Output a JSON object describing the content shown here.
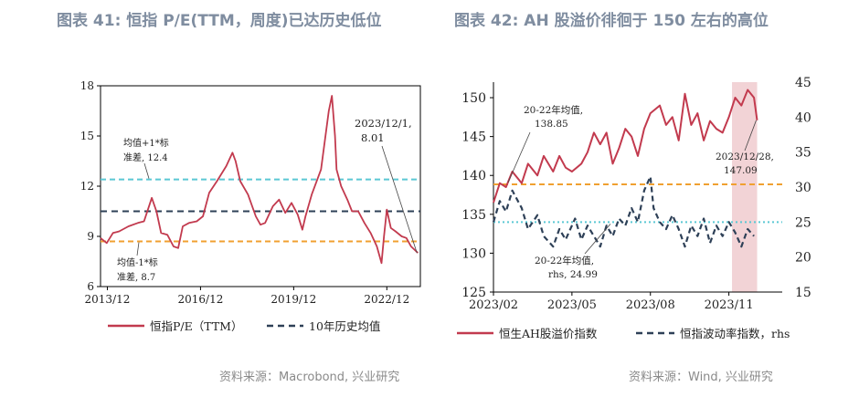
{
  "left_panel": {
    "title": "图表 41: 恒指 P/E(TTM，周度)已达历史低位",
    "source": "资料来源：Macrobond, 兴业研究"
  },
  "right_panel": {
    "title": "图表 42: AH 股溢价徘徊于 150 左右的高位",
    "source": "资料来源：Wind, 兴业研究"
  },
  "chart_data": [
    {
      "type": "line",
      "title": "恒指 P/E(TTM，周度)已达历史低位",
      "xlabel": "",
      "ylabel": "",
      "ylim": [
        6,
        18
      ],
      "yticks": [
        6,
        9,
        12,
        15,
        18
      ],
      "xlim": [
        2013.7,
        2024.0
      ],
      "xticks": [
        {
          "label": "2013/12",
          "x": 2013.92
        },
        {
          "label": "2016/12",
          "x": 2016.92
        },
        {
          "label": "2019/12",
          "x": 2019.92
        },
        {
          "label": "2022/12",
          "x": 2022.92
        }
      ],
      "series": [
        {
          "name": "恒指P/E（TTM）",
          "color": "#c23a4e",
          "x": [
            2013.7,
            2013.9,
            2014.1,
            2014.3,
            2014.6,
            2014.9,
            2015.1,
            2015.35,
            2015.5,
            2015.65,
            2015.85,
            2016.05,
            2016.2,
            2016.35,
            2016.55,
            2016.8,
            2017.0,
            2017.2,
            2017.45,
            2017.75,
            2017.95,
            2018.05,
            2018.2,
            2018.45,
            2018.7,
            2018.85,
            2019.0,
            2019.25,
            2019.45,
            2019.65,
            2019.85,
            2020.05,
            2020.2,
            2020.3,
            2020.5,
            2020.8,
            2021.05,
            2021.15,
            2021.25,
            2021.3,
            2021.45,
            2021.65,
            2021.8,
            2022.0,
            2022.2,
            2022.4,
            2022.6,
            2022.75,
            2022.83,
            2022.92,
            2023.05,
            2023.2,
            2023.4,
            2023.55,
            2023.7,
            2023.92
          ],
          "values": [
            8.9,
            8.6,
            9.2,
            9.3,
            9.6,
            9.8,
            9.9,
            11.3,
            10.5,
            9.2,
            9.1,
            8.4,
            8.3,
            9.6,
            9.8,
            9.9,
            10.2,
            11.6,
            12.3,
            13.2,
            14.0,
            13.5,
            12.3,
            11.5,
            10.2,
            9.7,
            9.8,
            10.8,
            11.2,
            10.4,
            11.0,
            10.3,
            9.4,
            10.2,
            11.5,
            13.0,
            16.5,
            17.4,
            15.0,
            13.0,
            12.0,
            11.2,
            10.5,
            10.5,
            9.8,
            9.2,
            8.4,
            7.4,
            9.0,
            10.6,
            9.5,
            9.3,
            9.0,
            8.9,
            8.4,
            8.01
          ]
        },
        {
          "name": "10年历史均值",
          "color": "#2e4057",
          "constant": 10.5
        }
      ],
      "reference_lines": [
        {
          "name": "均值+1*标准差",
          "value": 12.4,
          "color": "#5bc8d4"
        },
        {
          "name": "均值-1*标准差",
          "value": 8.7,
          "color": "#f0a030"
        }
      ],
      "annotations": [
        {
          "text_line1": "均值+1*标",
          "text_line2": "准差, 12.4",
          "ref": "upper"
        },
        {
          "text_line1": "均值-1*标",
          "text_line2": "准差, 8.7",
          "ref": "lower"
        },
        {
          "text_line1": "2023/12/1,",
          "text_line2": "8.01",
          "ref": "last"
        }
      ],
      "legend": [
        "恒指P/E（TTM）",
        "10年历史均值"
      ],
      "legend_position": "bottom"
    },
    {
      "type": "line",
      "title": "AH 股溢价徘徊于 150 左右的高位",
      "xlabel": "",
      "ylabel": "",
      "y2label": "",
      "ylim": [
        125,
        152
      ],
      "yticks": [
        125,
        130,
        135,
        140,
        145,
        150
      ],
      "y2lim": [
        15,
        45
      ],
      "y2ticks": [
        15,
        20,
        25,
        30,
        35,
        40,
        45
      ],
      "xlim": [
        2023.08,
        2024.0
      ],
      "xticks": [
        {
          "label": "2023/02",
          "x": 2023.08
        },
        {
          "label": "2023/05",
          "x": 2023.33
        },
        {
          "label": "2023/08",
          "x": 2023.58
        },
        {
          "label": "2023/11",
          "x": 2023.83
        }
      ],
      "shaded_region": [
        2023.84,
        2023.92
      ],
      "series": [
        {
          "name": "恒生AH股溢价指数",
          "color": "#c23a4e",
          "axis": "left",
          "x": [
            2023.08,
            2023.1,
            2023.12,
            2023.14,
            2023.17,
            2023.19,
            2023.22,
            2023.24,
            2023.27,
            2023.29,
            2023.31,
            2023.33,
            2023.36,
            2023.38,
            2023.4,
            2023.42,
            2023.44,
            2023.46,
            2023.48,
            2023.5,
            2023.52,
            2023.54,
            2023.56,
            2023.58,
            2023.61,
            2023.63,
            2023.65,
            2023.67,
            2023.69,
            2023.71,
            2023.73,
            2023.75,
            2023.77,
            2023.79,
            2023.81,
            2023.83,
            2023.85,
            2023.87,
            2023.89,
            2023.91,
            2023.92
          ],
          "values": [
            136.5,
            139.0,
            138.5,
            140.5,
            139.0,
            141.5,
            140.0,
            142.5,
            140.5,
            142.5,
            141.0,
            140.5,
            141.5,
            143.0,
            145.5,
            144.0,
            145.5,
            141.5,
            143.5,
            146.0,
            145.0,
            142.5,
            146.0,
            148.0,
            149.0,
            146.5,
            147.5,
            144.5,
            150.5,
            146.5,
            148.0,
            144.5,
            147.0,
            146.0,
            145.5,
            147.5,
            150.0,
            149.0,
            151.0,
            150.0,
            147.09
          ]
        },
        {
          "name": "恒指波动率指数，rhs",
          "color": "#2e4057",
          "axis": "right",
          "x": [
            2023.08,
            2023.1,
            2023.12,
            2023.14,
            2023.17,
            2023.19,
            2023.22,
            2023.24,
            2023.27,
            2023.29,
            2023.31,
            2023.34,
            2023.36,
            2023.38,
            2023.4,
            2023.42,
            2023.44,
            2023.46,
            2023.48,
            2023.5,
            2023.52,
            2023.54,
            2023.56,
            2023.58,
            2023.59,
            2023.61,
            2023.63,
            2023.65,
            2023.67,
            2023.69,
            2023.71,
            2023.73,
            2023.75,
            2023.77,
            2023.79,
            2023.81,
            2023.83,
            2023.85,
            2023.87,
            2023.89,
            2023.91
          ],
          "values": [
            25.0,
            28.0,
            26.5,
            29.5,
            27.0,
            24.0,
            26.0,
            23.0,
            21.5,
            24.0,
            22.5,
            25.5,
            22.5,
            24.5,
            23.0,
            21.5,
            24.5,
            23.0,
            25.5,
            24.5,
            27.0,
            25.0,
            29.5,
            31.5,
            27.0,
            25.0,
            24.0,
            26.0,
            24.0,
            21.5,
            24.5,
            23.0,
            25.5,
            22.0,
            24.5,
            23.0,
            25.0,
            23.5,
            21.5,
            24.0,
            23.0
          ]
        }
      ],
      "reference_lines": [
        {
          "name": "20-22年均值 (AH)",
          "value": 138.85,
          "axis": "left",
          "color": "#f0a030"
        },
        {
          "name": "20-22年均值 (rhs)",
          "value": 24.99,
          "axis": "right",
          "color": "#5bc8d4"
        }
      ],
      "annotations": [
        {
          "text_line1": "20-22年均值,",
          "text_line2": "138.85",
          "ref": "ah_mean"
        },
        {
          "text_line1": "20-22年均值,",
          "text_line2": "rhs, 24.99",
          "ref": "vol_mean"
        },
        {
          "text_line1": "2023/12/28,",
          "text_line2": "147.09",
          "ref": "last"
        }
      ],
      "legend": [
        "恒生AH股溢价指数",
        "恒指波动率指数，rhs"
      ],
      "legend_position": "bottom"
    }
  ]
}
